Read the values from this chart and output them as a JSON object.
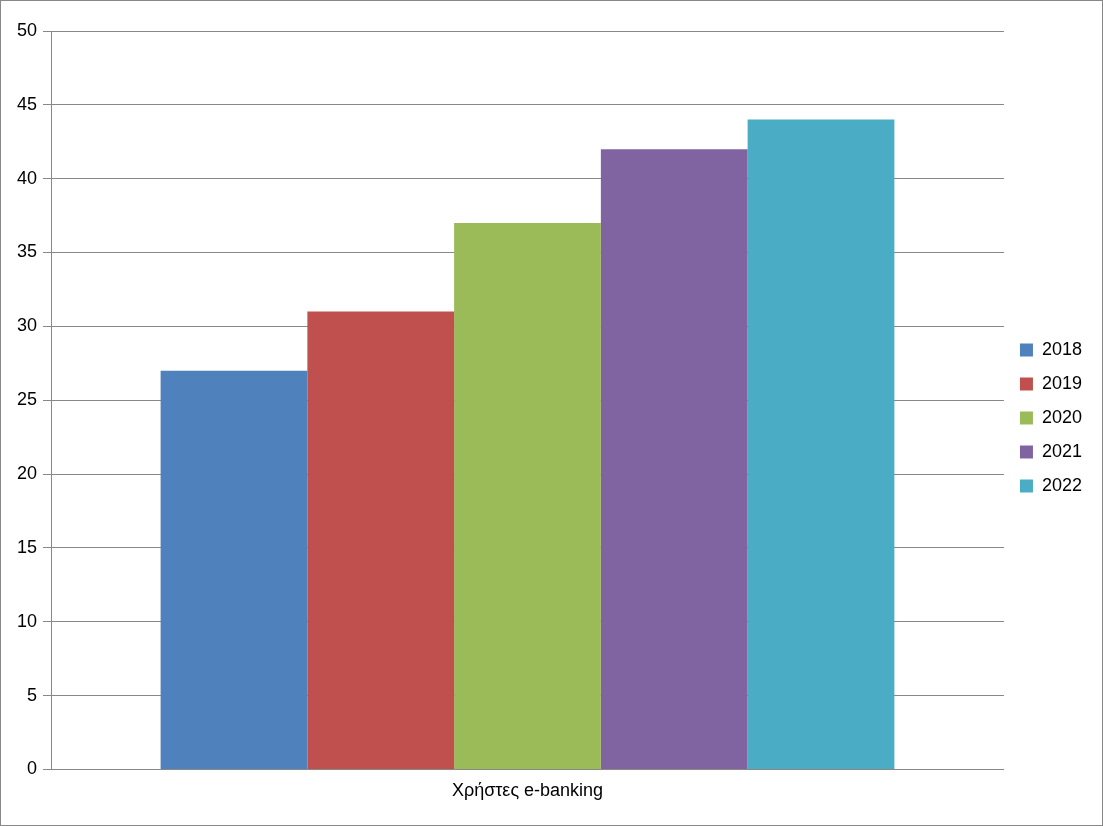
{
  "chart_data": {
    "type": "bar",
    "xlabel": null,
    "categories": [
      "Χρήστες e-banking"
    ],
    "series": [
      {
        "name": "2018",
        "color": "#4f81bd",
        "values": [
          27
        ]
      },
      {
        "name": "2019",
        "color": "#c0504d",
        "values": [
          31
        ]
      },
      {
        "name": "2020",
        "color": "#9bbb59",
        "values": [
          37
        ]
      },
      {
        "name": "2021",
        "color": "#8064a2",
        "values": [
          42
        ]
      },
      {
        "name": "2022",
        "color": "#4bacc6",
        "values": [
          44
        ]
      }
    ],
    "ylim": [
      0,
      50
    ],
    "yticks": [
      0,
      5,
      10,
      15,
      20,
      25,
      30,
      35,
      40,
      45,
      50
    ],
    "grid": "y",
    "legend": "right"
  }
}
